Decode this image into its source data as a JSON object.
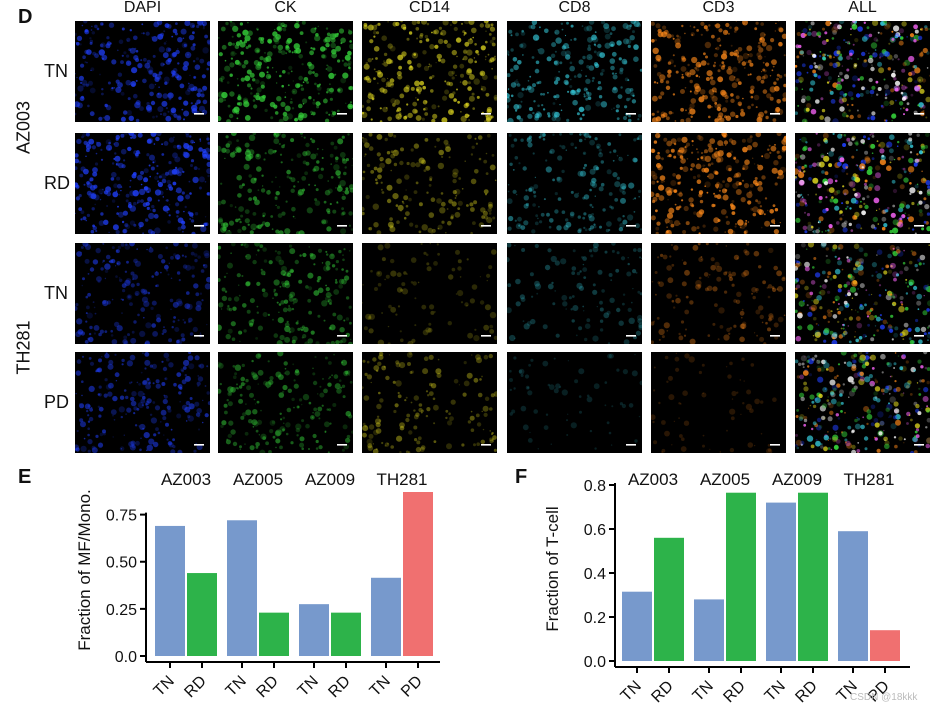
{
  "panel_letters": {
    "micro": "D",
    "e": "E",
    "f": "F"
  },
  "channels": [
    {
      "label": "DAPI",
      "color": "#2040ff"
    },
    {
      "label": "CK",
      "color": "#35d13a"
    },
    {
      "label": "CD14",
      "color": "#e4dc20"
    },
    {
      "label": "CD8",
      "color": "#36cfe0"
    },
    {
      "label": "CD3",
      "color": "#ff8a1a"
    },
    {
      "label": "ALL",
      "color": "multi"
    }
  ],
  "patients": [
    "AZ003",
    "TH281"
  ],
  "rows": [
    {
      "patient": "AZ003",
      "state": "TN",
      "intensity": [
        0.8,
        0.9,
        0.8,
        0.7,
        0.85,
        1
      ]
    },
    {
      "patient": "AZ003",
      "state": "RD",
      "intensity": [
        0.9,
        0.6,
        0.4,
        0.45,
        0.9,
        1
      ]
    },
    {
      "patient": "TH281",
      "state": "TN",
      "intensity": [
        0.55,
        0.55,
        0.12,
        0.2,
        0.3,
        0.9
      ]
    },
    {
      "patient": "TH281",
      "state": "PD",
      "intensity": [
        0.6,
        0.5,
        0.35,
        0.02,
        0.02,
        0.9
      ]
    }
  ],
  "bar_colors": {
    "TN": "#7799cc",
    "RD": "#2db34a",
    "PD": "#f07070"
  },
  "chart_data": [
    {
      "type": "bar",
      "panel": "E",
      "ylabel": "Fraction of MF/Mono.",
      "ylim": [
        0,
        0.87
      ],
      "yticks": [
        0.0,
        0.25,
        0.5,
        0.75
      ],
      "ytick_labels": [
        "0.0",
        "0.25",
        "0.50",
        "0.75"
      ],
      "groups": [
        {
          "name": "AZ003",
          "bars": [
            {
              "label": "TN",
              "value": 0.69
            },
            {
              "label": "RD",
              "value": 0.44
            }
          ]
        },
        {
          "name": "AZ005",
          "bars": [
            {
              "label": "TN",
              "value": 0.72
            },
            {
              "label": "RD",
              "value": 0.23
            }
          ]
        },
        {
          "name": "AZ009",
          "bars": [
            {
              "label": "TN",
              "value": 0.275
            },
            {
              "label": "RD",
              "value": 0.23
            }
          ]
        },
        {
          "name": "TH281",
          "bars": [
            {
              "label": "TN",
              "value": 0.415
            },
            {
              "label": "PD",
              "value": 0.87
            }
          ]
        }
      ]
    },
    {
      "type": "bar",
      "panel": "F",
      "ylabel": "Fraction of T-cell",
      "ylim": [
        0,
        0.8
      ],
      "yticks": [
        0.0,
        0.2,
        0.4,
        0.6,
        0.8
      ],
      "ytick_labels": [
        "0.0",
        "0.2",
        "0.4",
        "0.6",
        "0.8"
      ],
      "groups": [
        {
          "name": "AZ003",
          "bars": [
            {
              "label": "TN",
              "value": 0.315
            },
            {
              "label": "RD",
              "value": 0.56
            }
          ]
        },
        {
          "name": "AZ005",
          "bars": [
            {
              "label": "TN",
              "value": 0.28
            },
            {
              "label": "RD",
              "value": 0.765
            }
          ]
        },
        {
          "name": "AZ009",
          "bars": [
            {
              "label": "TN",
              "value": 0.72
            },
            {
              "label": "RD",
              "value": 0.765
            }
          ]
        },
        {
          "name": "TH281",
          "bars": [
            {
              "label": "TN",
              "value": 0.59
            },
            {
              "label": "PD",
              "value": 0.14
            }
          ]
        }
      ]
    }
  ],
  "watermark": "CSDN @18kkk"
}
